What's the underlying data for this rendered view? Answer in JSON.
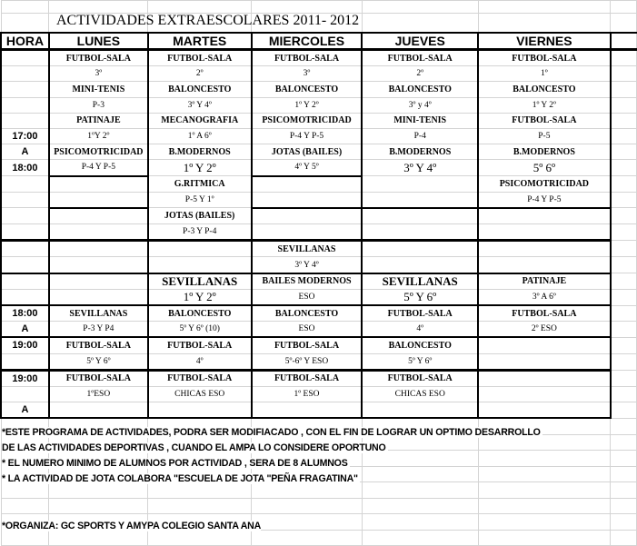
{
  "title": "ACTIVIDADES EXTRAESCOLARES 2011- 2012",
  "headers": [
    "HORA",
    "LUNES",
    "MARTES",
    "MIERCOLES",
    "JUEVES",
    "VIERNES"
  ],
  "rows": [
    [
      "",
      "FUTBOL-SALA",
      "FUTBOL-SALA",
      "FUTBOL-SALA",
      "FUTBOL-SALA",
      "FUTBOL-SALA"
    ],
    [
      "",
      "3º",
      "2º",
      "3º",
      "2º",
      "1º"
    ],
    [
      "",
      "MINI-TENIS",
      "BALONCESTO",
      "BALONCESTO",
      "BALONCESTO",
      "BALONCESTO"
    ],
    [
      "",
      "P-3",
      "3º Y 4º",
      "1º Y 2º",
      "3º y 4º",
      "1º Y 2º"
    ],
    [
      "",
      "PATINAJE",
      "MECANOGRAFIA",
      "PSICOMOTRICIDAD",
      "MINI-TENIS",
      "FUTBOL-SALA"
    ],
    [
      "17:00",
      "1ºY 2º",
      "1º A 6º",
      "P-4 Y P-5",
      "P-4",
      "P-5"
    ],
    [
      "A",
      "PSICOMOTRICIDAD",
      "B.MODERNOS",
      "JOTAS (BAILES)",
      "B.MODERNOS",
      "B.MODERNOS"
    ],
    [
      "18:00",
      "P-4 Y P-5",
      "1º Y 2º",
      "4º Y 5º",
      "3º Y 4º",
      "5º 6º"
    ],
    [
      "",
      "",
      "G.RITMICA",
      "",
      "",
      "PSICOMOTRICIDAD"
    ],
    [
      "",
      "",
      "P-5 Y 1º",
      "",
      "",
      "P-4 Y P-5"
    ],
    [
      "",
      "",
      "JOTAS (BAILES)",
      "",
      "",
      ""
    ],
    [
      "",
      "",
      "P-3 Y P-4",
      "",
      "",
      ""
    ],
    [
      "",
      "",
      "",
      "SEVILLANAS",
      "",
      ""
    ],
    [
      "",
      "",
      "",
      "3º Y 4º",
      "",
      ""
    ],
    [
      "",
      "",
      "SEVILLANAS",
      "BAILES MODERNOS",
      "SEVILLANAS",
      "PATINAJE"
    ],
    [
      "",
      "",
      "1º Y 2º",
      "ESO",
      "5º Y 6º",
      "3º A 6º"
    ],
    [
      "18:00",
      "SEVILLANAS",
      "BALONCESTO",
      "BALONCESTO",
      "FUTBOL-SALA",
      "FUTBOL-SALA"
    ],
    [
      "A",
      "P-3 Y P4",
      "5º Y 6º (10)",
      "ESO",
      "4º",
      "2º ESO"
    ],
    [
      "19:00",
      "FUTBOL-SALA",
      "FUTBOL-SALA",
      "FUTBOL-SALA",
      "BALONCESTO",
      ""
    ],
    [
      "",
      "5º Y 6º",
      "4º",
      "5º-6º Y ESO",
      "5º Y 6º",
      ""
    ],
    [
      "19:00",
      "FUTBOL-SALA",
      "FUTBOL-SALA",
      "FUTBOL-SALA",
      "FUTBOL-SALA",
      ""
    ],
    [
      "",
      "1ºESO",
      "CHICAS ESO",
      "1º ESO",
      "CHICAS ESO",
      ""
    ],
    [
      "A",
      "",
      "",
      "",
      "",
      ""
    ]
  ],
  "notes": [
    "*ESTE PROGRAMA DE ACTIVIDADES,  PODRA SER MODIFIACADO , CON EL FIN DE LOGRAR UN OPTIMO DESARROLLO",
    "DE LAS ACTIVIDADES DEPORTIVAS , CUANDO EL AMPA LO CONSIDERE OPORTUNO",
    "* EL NUMERO MINIMO DE ALUMNOS POR ACTIVIDAD , SERA  DE 8 ALUMNOS",
    "* LA ACTIVIDAD DE JOTA COLABORA \"ESCUELA DE JOTA \"PEÑA FRAGATINA\""
  ],
  "organizer": "*ORGANIZA: GC SPORTS Y AMYPA  COLEGIO SANTA ANA"
}
